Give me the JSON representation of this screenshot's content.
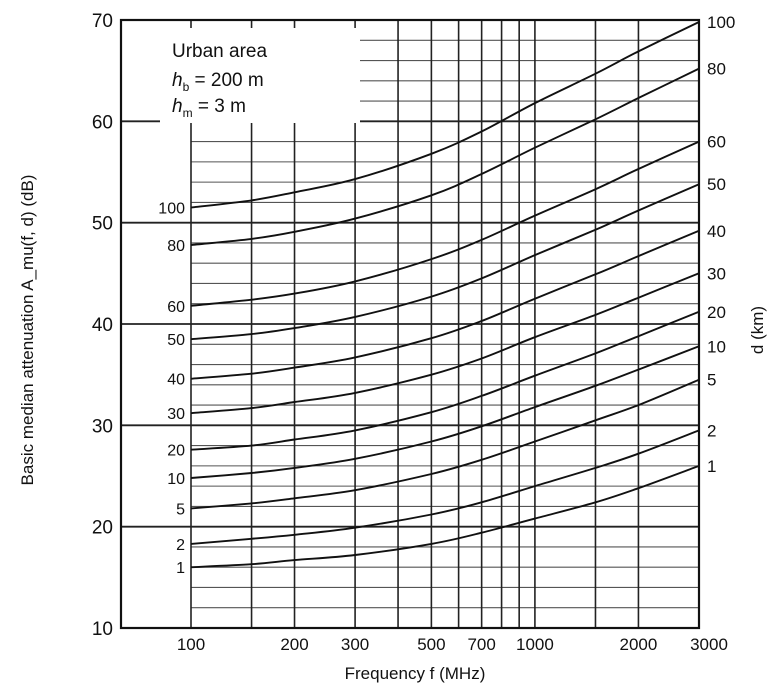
{
  "chart_data": {
    "type": "line",
    "xlabel": "Frequency f (MHz)",
    "ylabel": "Basic median attenuation A_mu(f, d) (dB)",
    "y2label": "d (km)",
    "x_scale": "log",
    "xlim": [
      100,
      3000
    ],
    "ylim": [
      10,
      70
    ],
    "grid": true,
    "x_ticks": [
      100,
      200,
      300,
      500,
      700,
      1000,
      2000,
      3000
    ],
    "x_tick_labels": [
      "100",
      "200",
      "300",
      "500",
      "700",
      "1000",
      "2000",
      "3000"
    ],
    "y_ticks": [
      10,
      20,
      30,
      40,
      50,
      60,
      70
    ],
    "y_tick_labels": [
      "10",
      "20",
      "30",
      "40",
      "50",
      "60",
      "70"
    ],
    "legend": {
      "title": "Urban area",
      "line1": {
        "sym": "h",
        "sub": "b",
        "eq": " = 200 m"
      },
      "line2": {
        "sym": "h",
        "sub": "m",
        "eq": " = 3 m"
      }
    },
    "x": [
      100,
      150,
      200,
      300,
      500,
      700,
      1000,
      1500,
      2000,
      3000
    ],
    "series": [
      {
        "name": "1",
        "left_label": "1",
        "right_label": "1",
        "values": [
          16.0,
          16.3,
          16.7,
          17.2,
          18.3,
          19.4,
          20.8,
          22.4,
          23.8,
          26.0
        ]
      },
      {
        "name": "2",
        "left_label": "2",
        "right_label": "2",
        "values": [
          18.3,
          18.8,
          19.2,
          19.9,
          21.2,
          22.4,
          24.0,
          25.8,
          27.2,
          29.5
        ]
      },
      {
        "name": "5",
        "left_label": "5",
        "right_label": "5",
        "values": [
          21.8,
          22.3,
          22.8,
          23.6,
          25.2,
          26.6,
          28.4,
          30.5,
          32.0,
          34.5
        ]
      },
      {
        "name": "10",
        "left_label": "10",
        "right_label": "10",
        "values": [
          24.8,
          25.3,
          25.8,
          26.7,
          28.4,
          29.9,
          31.8,
          33.9,
          35.5,
          37.8
        ]
      },
      {
        "name": "20",
        "left_label": "20",
        "right_label": "20",
        "values": [
          27.6,
          28.0,
          28.6,
          29.5,
          31.3,
          32.9,
          34.9,
          37.1,
          38.8,
          41.2
        ]
      },
      {
        "name": "30",
        "left_label": "30",
        "right_label": "30",
        "values": [
          31.2,
          31.7,
          32.3,
          33.2,
          35.0,
          36.6,
          38.7,
          40.9,
          42.6,
          45.0
        ]
      },
      {
        "name": "40",
        "left_label": "40",
        "right_label": "40",
        "values": [
          34.6,
          35.1,
          35.7,
          36.7,
          38.6,
          40.3,
          42.5,
          44.9,
          46.7,
          49.2
        ]
      },
      {
        "name": "50",
        "left_label": "50",
        "right_label": "50",
        "values": [
          38.5,
          39.0,
          39.6,
          40.7,
          42.7,
          44.5,
          46.8,
          49.3,
          51.2,
          53.8
        ]
      },
      {
        "name": "60",
        "left_label": "60",
        "right_label": "60",
        "values": [
          41.8,
          42.4,
          43.0,
          44.2,
          46.4,
          48.3,
          50.7,
          53.3,
          55.3,
          58.0
        ]
      },
      {
        "name": "80",
        "left_label": "80",
        "right_label": "80",
        "values": [
          47.8,
          48.4,
          49.1,
          50.4,
          52.7,
          54.8,
          57.4,
          60.2,
          62.3,
          65.2
        ]
      },
      {
        "name": "100",
        "left_label": "100",
        "right_label": "100",
        "values": [
          51.5,
          52.2,
          53.0,
          54.3,
          56.8,
          59.0,
          61.8,
          64.7,
          66.9,
          69.8
        ]
      }
    ]
  }
}
